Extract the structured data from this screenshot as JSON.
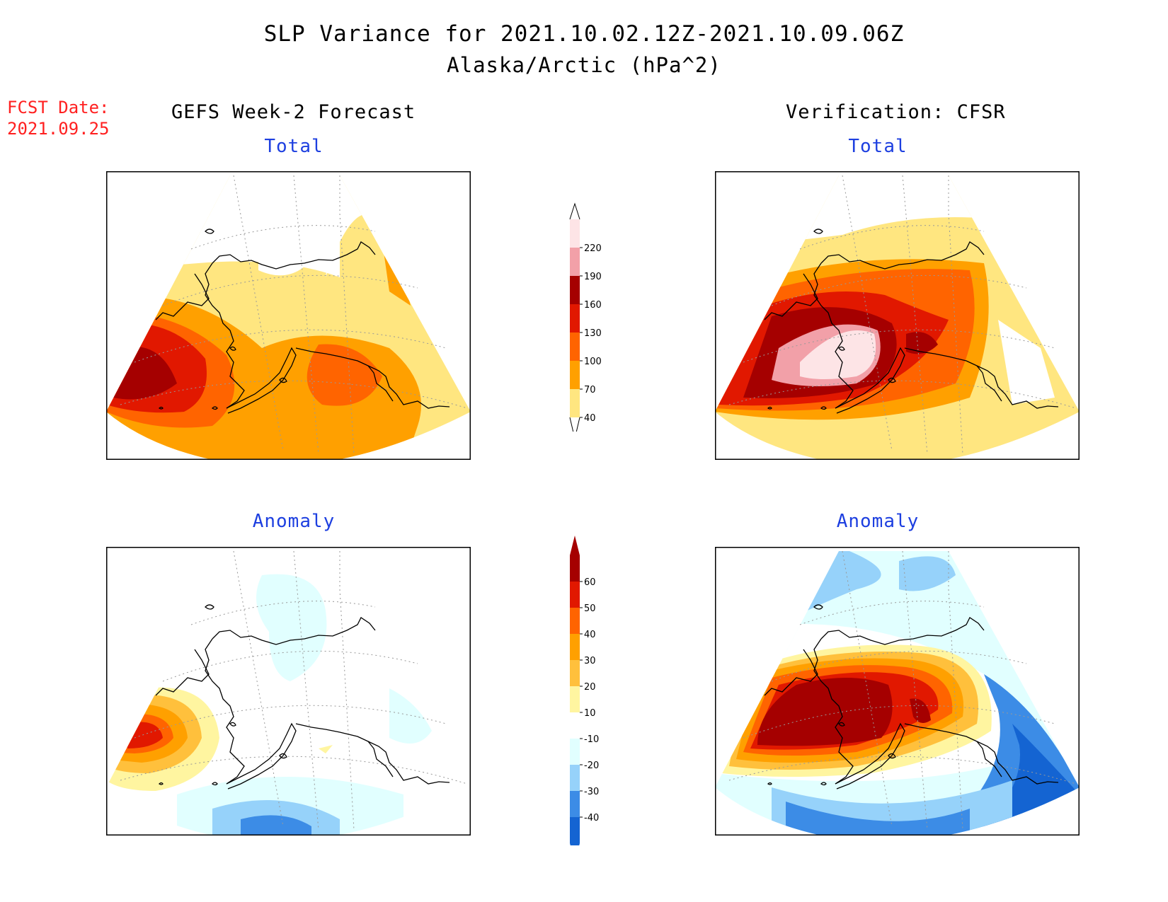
{
  "header": {
    "title": "SLP Variance for 2021.10.02.12Z-2021.10.09.06Z",
    "subtitle": "Alaska/Arctic (hPa^2)"
  },
  "forecast_info": {
    "label": "FCST Date:",
    "date": "2021.09.25"
  },
  "columns": {
    "left": "GEFS Week-2 Forecast",
    "right": "Verification: CFSR"
  },
  "panels": {
    "top_left_label": "Total",
    "top_right_label": "Total",
    "bottom_left_label": "Anomaly",
    "bottom_right_label": "Anomaly"
  },
  "colorbars": {
    "total": {
      "levels": [
        "40",
        "70",
        "100",
        "130",
        "160",
        "190",
        "220"
      ],
      "colors": [
        "#ffe680",
        "#ffa000",
        "#ff6400",
        "#e11800",
        "#a50000",
        "#f2a0a8",
        "#fde4e6"
      ]
    },
    "anomaly": {
      "levels": [
        "-40",
        "-30",
        "-20",
        "-10",
        "10",
        "20",
        "30",
        "40",
        "50",
        "60"
      ],
      "colors": [
        "#1464d2",
        "#3c8ce6",
        "#96d2fa",
        "#e1ffff",
        "#ffffff",
        "#fff5a0",
        "#ffc03c",
        "#ffa000",
        "#ff6400",
        "#e11800",
        "#a50000"
      ]
    }
  }
}
